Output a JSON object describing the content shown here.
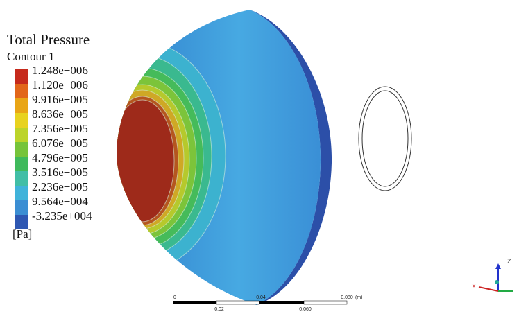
{
  "legend": {
    "title": "Total Pressure",
    "subtitle": "Contour 1",
    "levels": [
      "1.248e+006",
      "1.120e+006",
      "9.916e+005",
      "8.636e+005",
      "7.356e+005",
      "6.076e+005",
      "4.796e+005",
      "3.516e+005",
      "2.236e+005",
      "9.564e+004",
      "-3.235e+004"
    ],
    "unit": "[Pa]"
  },
  "scale_bar": {
    "top_labels": [
      "0",
      "0.04",
      "0.080"
    ],
    "unit": "(m)",
    "bottom_labels": [
      "0.02",
      "0.060"
    ]
  },
  "axes": {
    "vertical": "Z",
    "horizontal": "X"
  }
}
